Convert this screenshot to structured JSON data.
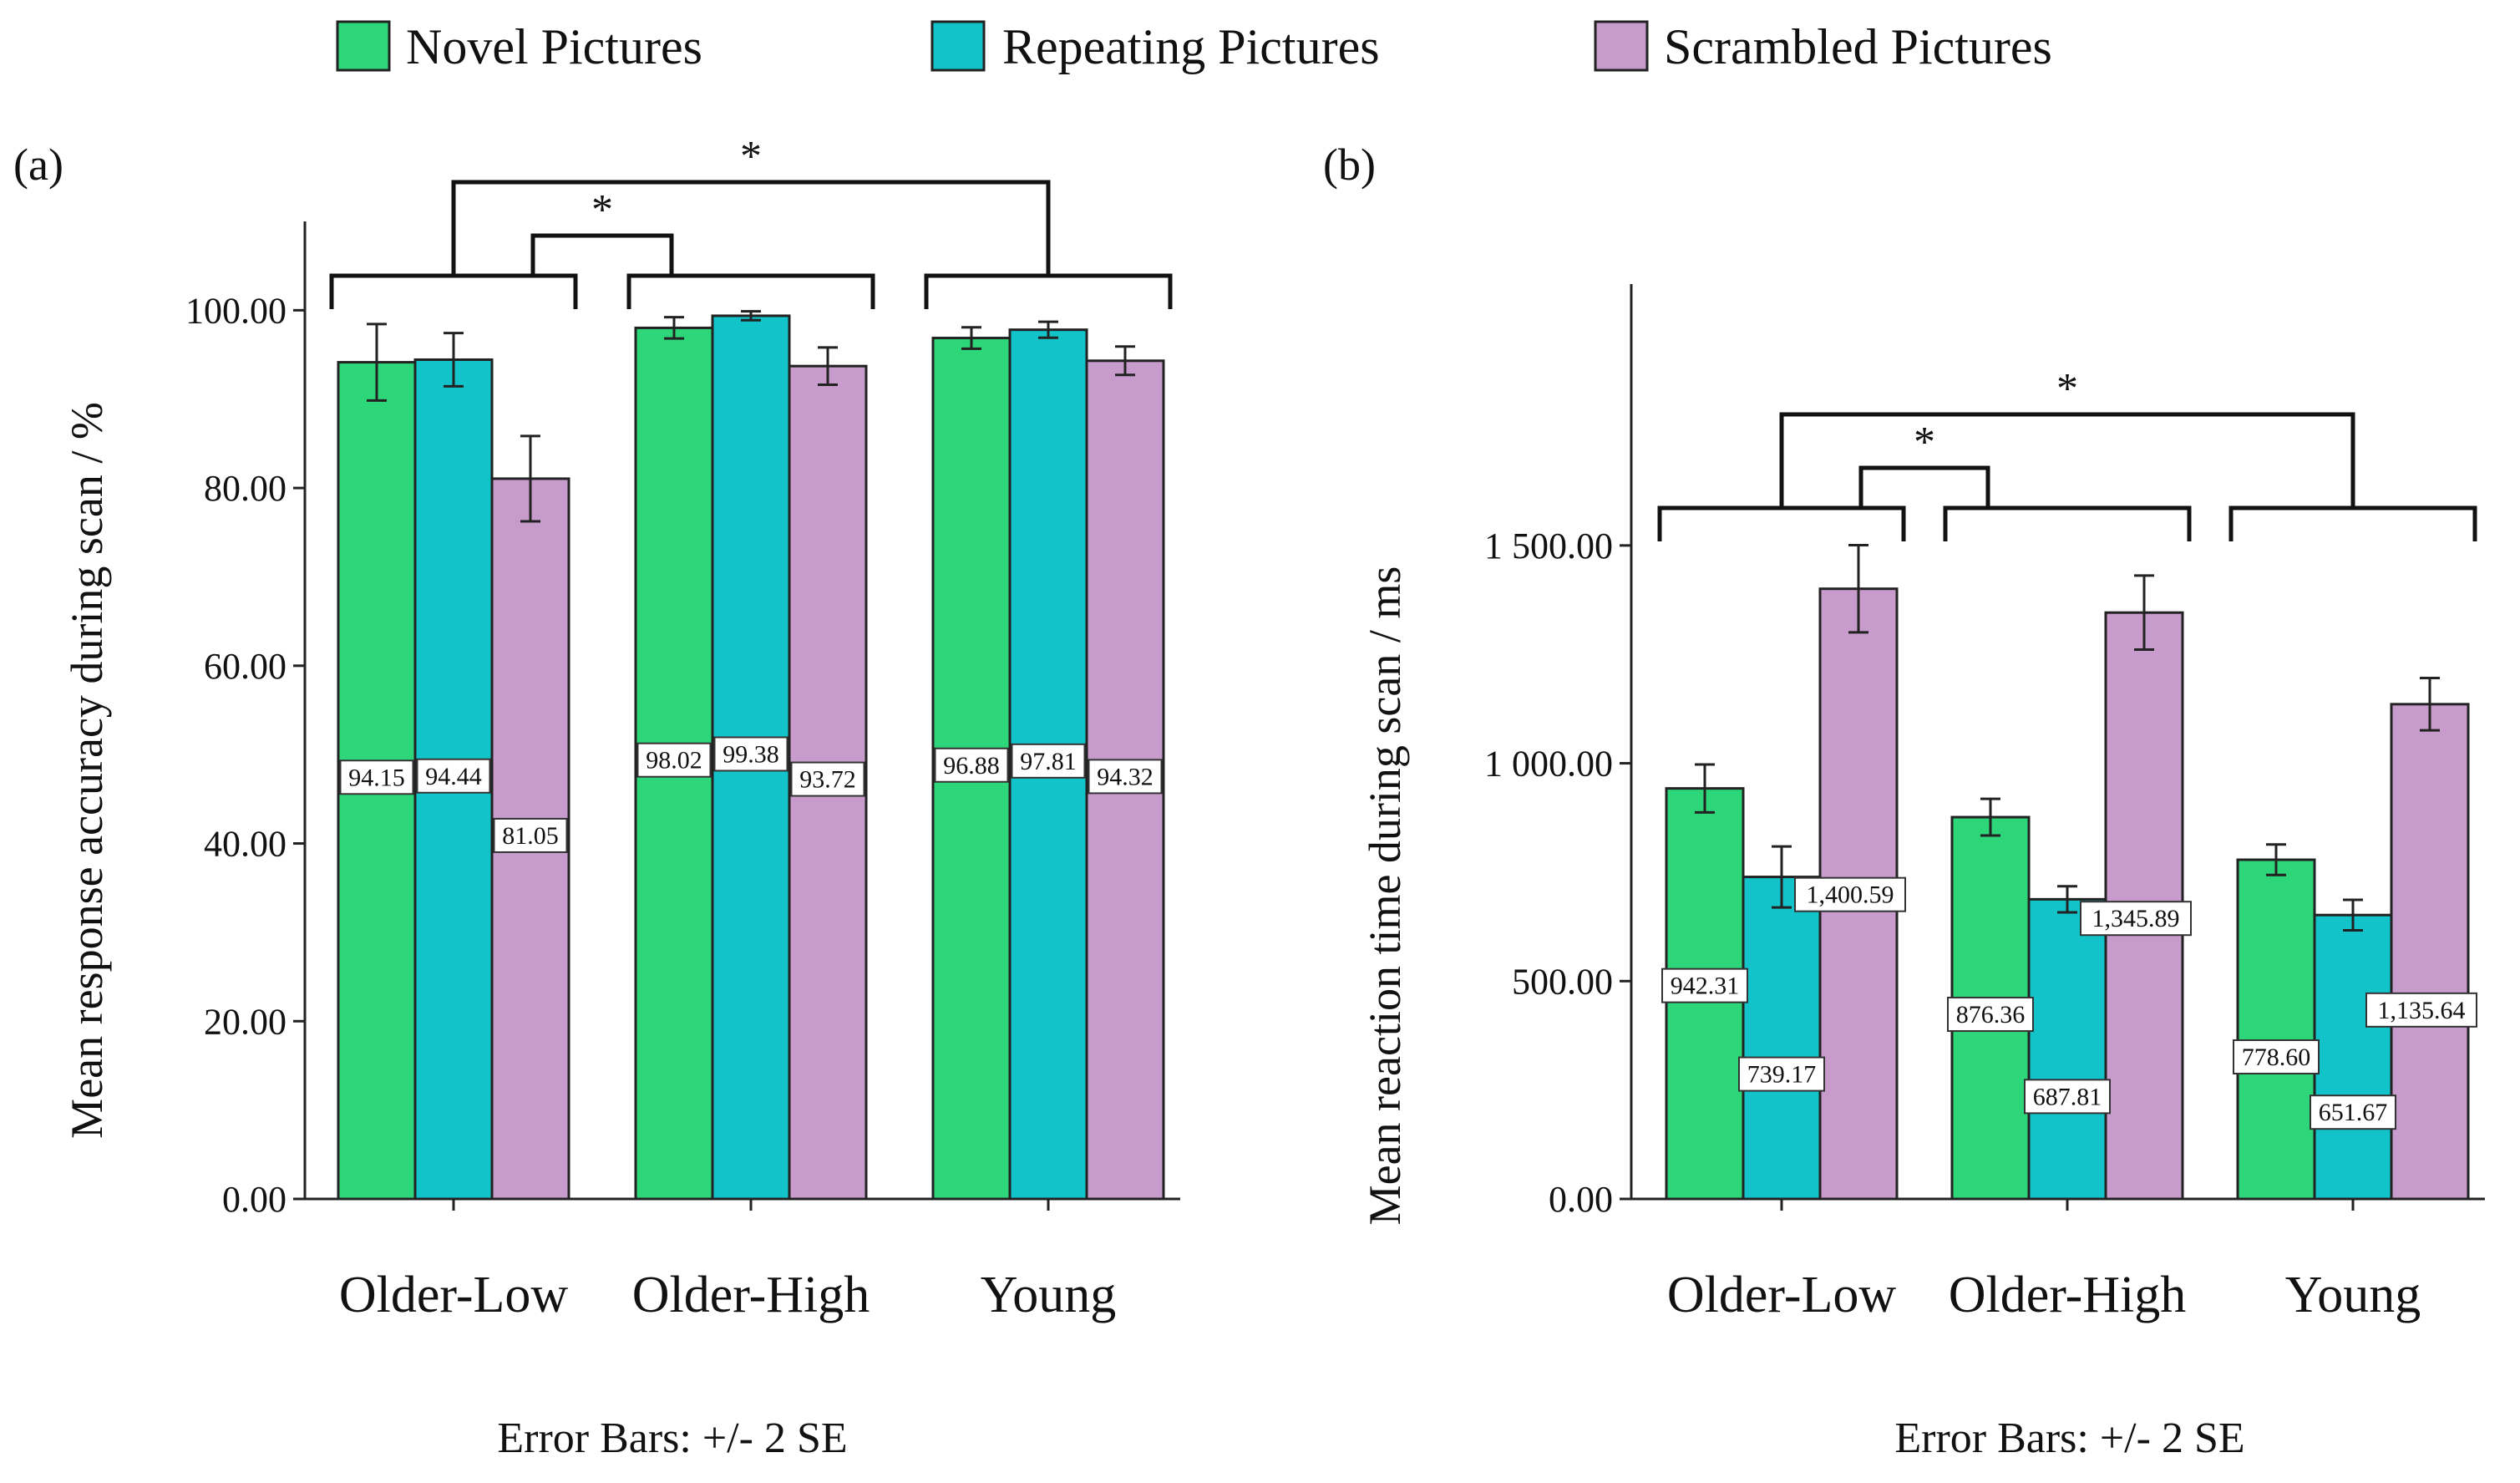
{
  "legend": {
    "items": [
      {
        "label": "Novel Pictures",
        "color": "#2ed67a"
      },
      {
        "label": "Repeating Pictures",
        "color": "#12c4c9"
      },
      {
        "label": "Scrambled Pictures",
        "color": "#c79ccc"
      }
    ]
  },
  "panels": [
    {
      "label": "(a)",
      "footnote": "Error Bars: +/- 2 SE",
      "significance": "*"
    },
    {
      "label": "(b)",
      "footnote": "Error Bars: +/- 2 SE",
      "significance": "*"
    }
  ],
  "chart_data": [
    {
      "type": "bar",
      "ylabel": "Mean response accuracy during scan / %",
      "xlabel": "",
      "categories": [
        "Older-Low",
        "Older-High",
        "Young"
      ],
      "yticks": [
        0,
        20,
        40,
        60,
        80,
        100
      ],
      "ytick_labels": [
        "0.00",
        "20.00",
        "40.00",
        "60.00",
        "80.00",
        "100.00"
      ],
      "ylim": [
        0,
        110
      ],
      "error_bars": "+/- 2 SE",
      "series": [
        {
          "name": "Novel Pictures",
          "values": [
            94.15,
            98.02,
            96.88
          ],
          "labels": [
            "94.15",
            "98.02",
            "96.88"
          ],
          "err": [
            4.3,
            1.2,
            1.2
          ]
        },
        {
          "name": "Repeating Pictures",
          "values": [
            94.44,
            99.38,
            97.81
          ],
          "labels": [
            "94.44",
            "99.38",
            "97.81"
          ],
          "err": [
            3.0,
            0.5,
            0.9
          ]
        },
        {
          "name": "Scrambled Pictures",
          "values": [
            81.05,
            93.72,
            94.32
          ],
          "labels": [
            "81.05",
            "93.72",
            "94.32"
          ],
          "err": [
            4.8,
            2.1,
            1.6
          ]
        }
      ],
      "significance": [
        {
          "between": [
            "Older-Low",
            "Older-High"
          ],
          "label": "*"
        },
        {
          "between": [
            "Older-Low",
            "Young"
          ],
          "label": "*"
        }
      ]
    },
    {
      "type": "bar",
      "ylabel": "Mean reaction time during scan / ms",
      "xlabel": "",
      "categories": [
        "Older-Low",
        "Older-High",
        "Young"
      ],
      "yticks": [
        0,
        500,
        1000,
        1500
      ],
      "ytick_labels": [
        "0.00",
        "500.00",
        "1 000.00",
        "1 500.00"
      ],
      "ylim": [
        0,
        2100
      ],
      "error_bars": "+/- 2 SE",
      "series": [
        {
          "name": "Novel Pictures",
          "values": [
            942.31,
            876.36,
            778.6
          ],
          "labels": [
            "942.31",
            "876.36",
            "778.60"
          ],
          "err": [
            55,
            42,
            35
          ]
        },
        {
          "name": "Repeating Pictures",
          "values": [
            739.17,
            687.81,
            651.67
          ],
          "labels": [
            "739.17",
            "687.81",
            "651.67"
          ],
          "err": [
            70,
            30,
            35
          ]
        },
        {
          "name": "Scrambled Pictures",
          "values": [
            1400.59,
            1345.89,
            1135.64
          ],
          "labels": [
            "1,400.59",
            "1,345.89",
            "1,135.64"
          ],
          "err": [
            100,
            85,
            60
          ]
        }
      ],
      "significance": [
        {
          "between": [
            "Older-Low",
            "Older-High"
          ],
          "label": "*"
        },
        {
          "between": [
            "Older-Low",
            "Young"
          ],
          "label": "*"
        }
      ]
    }
  ]
}
